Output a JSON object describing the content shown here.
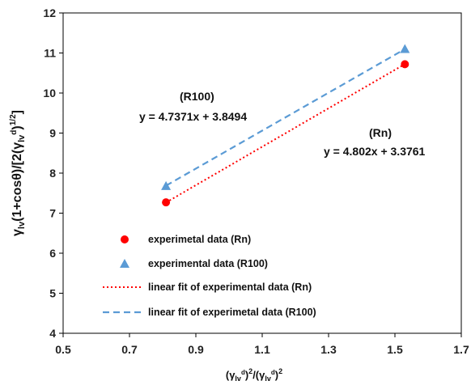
{
  "chart_data": {
    "type": "scatter",
    "xlim": [
      0.5,
      1.7
    ],
    "ylim": [
      4,
      12
    ],
    "x_ticks": [
      "0.5",
      "0.7",
      "0.9",
      "1.1",
      "1.3",
      "1.5",
      "1.7"
    ],
    "y_ticks": [
      "4",
      "5",
      "6",
      "7",
      "8",
      "9",
      "10",
      "11",
      "12"
    ],
    "x_tick_values": [
      0.5,
      0.7,
      0.9,
      1.1,
      1.3,
      1.5,
      1.7
    ],
    "y_tick_values": [
      4,
      5,
      6,
      7,
      8,
      9,
      10,
      11,
      12
    ],
    "xlabel": "(γlv^d)^2/(γlv^d)^2",
    "ylabel": "γlv(1+cosθ)/[2(γlv^d)^1/2]",
    "grid": false,
    "legend_position": "bottom-left",
    "series": [
      {
        "name": "experimetal data (Rn)",
        "kind": "scatter",
        "marker": "circle",
        "color": "#ff0000",
        "points": [
          [
            0.81,
            7.27
          ],
          [
            1.53,
            10.72
          ]
        ]
      },
      {
        "name": "experimental data (R100)",
        "kind": "scatter",
        "marker": "triangle",
        "color": "#5b9bd5",
        "points": [
          [
            0.81,
            7.68
          ],
          [
            1.53,
            11.1
          ]
        ]
      },
      {
        "name": "linear fit of experimental data (Rn)",
        "kind": "line",
        "style": "dotted",
        "color": "#ff0000",
        "slope": 4.802,
        "intercept": 3.3761,
        "x_range": [
          0.81,
          1.53
        ]
      },
      {
        "name": "linear fit of experimetal data (R100)",
        "kind": "line",
        "style": "dashed",
        "color": "#5b9bd5",
        "slope": 4.7371,
        "intercept": 3.8494,
        "x_range": [
          0.81,
          1.53
        ]
      }
    ],
    "annotations": {
      "r100_label": "(R100)",
      "r100_equation": "y = 4.7371x + 3.8494",
      "rn_label": "(Rn)",
      "rn_equation": "y = 4.802x + 3.3761"
    }
  }
}
